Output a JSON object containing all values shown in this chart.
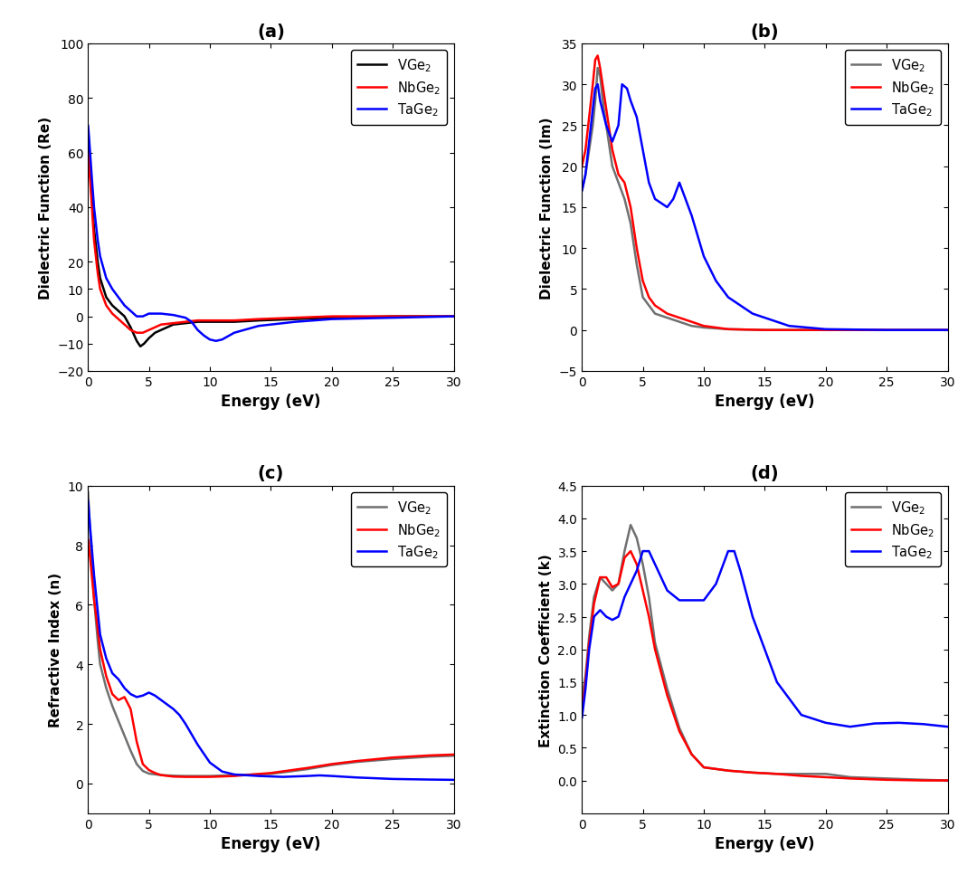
{
  "panel_labels": [
    "(a)",
    "(b)",
    "(c)",
    "(d)"
  ],
  "xlim": [
    0,
    30
  ],
  "xlabel": "Energy (eV)",
  "legend_labels": [
    "VGe$_2$",
    "NbGe$_2$",
    "TaGe$_2$"
  ],
  "line_colors_a": [
    "#000000",
    "#ff0000",
    "#0000ff"
  ],
  "line_colors_bcd": [
    "#707070",
    "#ff0000",
    "#0000ff"
  ],
  "panel_a": {
    "ylabel": "Dielectric Function (Re)",
    "ylim": [
      -20,
      100
    ],
    "yticks": [
      -20,
      -10,
      0,
      10,
      20,
      40,
      60,
      80,
      100
    ],
    "V_x": [
      0.01,
      0.1,
      0.3,
      0.5,
      0.8,
      1.0,
      1.5,
      2.0,
      2.5,
      3.0,
      3.5,
      4.0,
      4.3,
      4.6,
      5.0,
      5.5,
      6.0,
      7.0,
      8.0,
      9.0,
      10.0,
      11.0,
      12.0,
      14.0,
      17.0,
      20.0,
      25.0,
      30.0
    ],
    "V_y": [
      62,
      58,
      45,
      32,
      20,
      14,
      7,
      4,
      2,
      0,
      -4,
      -9,
      -11,
      -10,
      -8,
      -6,
      -5,
      -3,
      -2.5,
      -2,
      -2,
      -2,
      -2,
      -1.5,
      -1,
      -0.5,
      0,
      0
    ],
    "Nb_x": [
      0.01,
      0.1,
      0.3,
      0.5,
      0.8,
      1.0,
      1.5,
      2.0,
      2.5,
      3.0,
      3.5,
      4.0,
      4.5,
      5.0,
      5.5,
      6.0,
      7.0,
      8.0,
      9.0,
      10.0,
      11.0,
      12.0,
      14.0,
      17.0,
      20.0,
      25.0,
      30.0
    ],
    "Nb_y": [
      60,
      55,
      42,
      28,
      16,
      10,
      4,
      1,
      -1,
      -3,
      -5,
      -6,
      -6,
      -5,
      -4,
      -3,
      -2.5,
      -2,
      -1.5,
      -1.5,
      -1.5,
      -1.5,
      -1,
      -0.5,
      0,
      0,
      0
    ],
    "Ta_x": [
      0.01,
      0.1,
      0.3,
      0.5,
      0.8,
      1.0,
      1.5,
      2.0,
      2.5,
      3.0,
      3.5,
      4.0,
      4.5,
      5.0,
      6.0,
      7.0,
      7.5,
      8.0,
      8.5,
      9.0,
      9.5,
      10.0,
      10.5,
      11.0,
      12.0,
      14.0,
      17.0,
      20.0,
      25.0,
      30.0
    ],
    "Ta_y": [
      70,
      65,
      52,
      40,
      28,
      22,
      14,
      10,
      7,
      4,
      2,
      0,
      0,
      1,
      1,
      0.5,
      0,
      -0.5,
      -2,
      -5,
      -7,
      -8.5,
      -9,
      -8.5,
      -6,
      -3.5,
      -2,
      -1,
      -0.5,
      0
    ]
  },
  "panel_b": {
    "ylabel": "Dielectric Function (Im)",
    "ylim": [
      -5,
      35
    ],
    "yticks": [
      -5,
      0,
      5,
      10,
      15,
      20,
      25,
      30,
      35
    ],
    "V_x": [
      0.01,
      0.3,
      0.6,
      0.9,
      1.1,
      1.3,
      1.5,
      1.8,
      2.0,
      2.5,
      3.0,
      3.5,
      4.0,
      4.5,
      5.0,
      6.0,
      7.0,
      8.0,
      9.0,
      10.0,
      12.0,
      15.0,
      20.0,
      25.0,
      30.0
    ],
    "V_y": [
      17,
      19,
      22,
      25,
      28,
      32,
      31,
      27,
      25,
      20,
      18,
      16,
      13,
      8,
      4,
      2,
      1.5,
      1,
      0.5,
      0.3,
      0.1,
      0.0,
      0.0,
      0.0,
      0.0
    ],
    "Nb_x": [
      0.01,
      0.3,
      0.6,
      0.9,
      1.1,
      1.3,
      1.5,
      1.8,
      2.0,
      2.5,
      3.0,
      3.5,
      4.0,
      4.5,
      5.0,
      5.5,
      6.0,
      7.0,
      8.0,
      9.0,
      10.0,
      12.0,
      15.0,
      20.0,
      25.0,
      30.0
    ],
    "Nb_y": [
      20,
      22,
      26,
      30,
      33,
      33.5,
      32,
      29,
      27,
      22,
      19,
      18,
      15,
      10,
      6,
      4,
      3,
      2,
      1.5,
      1,
      0.5,
      0.1,
      0.0,
      0.0,
      0.0,
      0.0
    ],
    "Ta_x": [
      0.01,
      0.3,
      0.6,
      0.9,
      1.1,
      1.3,
      1.5,
      2.0,
      2.5,
      3.0,
      3.3,
      3.7,
      4.0,
      4.5,
      5.0,
      5.5,
      6.0,
      7.0,
      7.5,
      8.0,
      9.0,
      10.0,
      11.0,
      12.0,
      14.0,
      17.0,
      20.0,
      25.0,
      30.0
    ],
    "Ta_y": [
      17,
      19,
      23,
      27,
      29.5,
      30,
      28,
      25,
      23,
      25,
      30,
      29.5,
      28,
      26,
      22,
      18,
      16,
      15,
      16,
      18,
      14,
      9,
      6,
      4,
      2,
      0.5,
      0.1,
      0.0,
      0.0
    ]
  },
  "panel_c": {
    "ylabel": "Refractive Index (n)",
    "ylim": [
      -1,
      10
    ],
    "yticks": [
      0,
      2,
      4,
      6,
      8,
      10
    ],
    "V_x": [
      0.01,
      0.2,
      0.5,
      0.8,
      1.0,
      1.5,
      2.0,
      2.5,
      3.0,
      3.5,
      4.0,
      4.5,
      5.0,
      6.0,
      7.0,
      8.0,
      10.0,
      12.0,
      15.0,
      18.0,
      20.0,
      22.0,
      25.0,
      28.0,
      30.0
    ],
    "V_y": [
      9.8,
      8.3,
      6.2,
      4.8,
      4.0,
      3.2,
      2.6,
      2.1,
      1.6,
      1.1,
      0.65,
      0.42,
      0.33,
      0.28,
      0.26,
      0.25,
      0.25,
      0.28,
      0.32,
      0.48,
      0.62,
      0.72,
      0.82,
      0.9,
      0.93
    ],
    "Nb_x": [
      0.01,
      0.2,
      0.5,
      0.8,
      1.0,
      1.5,
      2.0,
      2.5,
      3.0,
      3.5,
      4.0,
      4.5,
      5.0,
      5.5,
      6.0,
      7.0,
      8.0,
      10.0,
      12.0,
      15.0,
      18.0,
      20.0,
      22.0,
      25.0,
      28.0,
      30.0
    ],
    "Nb_y": [
      8.2,
      7.5,
      6.2,
      5.2,
      4.5,
      3.6,
      3.0,
      2.8,
      2.9,
      2.5,
      1.4,
      0.65,
      0.45,
      0.35,
      0.28,
      0.23,
      0.22,
      0.22,
      0.25,
      0.35,
      0.52,
      0.65,
      0.75,
      0.87,
      0.94,
      0.97
    ],
    "Ta_x": [
      0.01,
      0.2,
      0.5,
      0.8,
      1.0,
      1.5,
      2.0,
      2.5,
      3.0,
      3.5,
      4.0,
      4.5,
      5.0,
      5.5,
      6.0,
      6.5,
      7.0,
      7.5,
      8.0,
      9.0,
      10.0,
      11.0,
      12.0,
      14.0,
      16.0,
      18.0,
      19.0,
      20.0,
      22.0,
      25.0,
      28.0,
      30.0
    ],
    "Ta_y": [
      9.5,
      8.5,
      7.0,
      5.8,
      5.0,
      4.2,
      3.7,
      3.5,
      3.2,
      3.0,
      2.9,
      2.95,
      3.05,
      2.95,
      2.8,
      2.65,
      2.5,
      2.3,
      2.0,
      1.3,
      0.7,
      0.4,
      0.3,
      0.25,
      0.22,
      0.25,
      0.27,
      0.25,
      0.2,
      0.15,
      0.13,
      0.12
    ]
  },
  "panel_d": {
    "ylabel": "Extinction Coefficient (k)",
    "ylim": [
      -0.5,
      4.5
    ],
    "yticks": [
      0.0,
      0.5,
      1.0,
      1.5,
      2.0,
      2.5,
      3.0,
      3.5,
      4.0,
      4.5
    ],
    "V_x": [
      0.01,
      0.3,
      0.6,
      1.0,
      1.5,
      2.0,
      2.5,
      3.0,
      3.5,
      4.0,
      4.5,
      5.0,
      5.5,
      6.0,
      7.0,
      8.0,
      9.0,
      10.0,
      12.0,
      14.0,
      16.0,
      18.0,
      19.0,
      20.0,
      22.0,
      25.0,
      28.0,
      30.0
    ],
    "V_y": [
      1.25,
      1.6,
      2.2,
      2.8,
      3.1,
      3.0,
      2.9,
      3.0,
      3.5,
      3.9,
      3.7,
      3.3,
      2.8,
      2.1,
      1.4,
      0.8,
      0.4,
      0.2,
      0.15,
      0.12,
      0.1,
      0.1,
      0.1,
      0.1,
      0.05,
      0.03,
      0.01,
      0.0
    ],
    "Nb_x": [
      0.01,
      0.3,
      0.6,
      1.0,
      1.5,
      2.0,
      2.5,
      3.0,
      3.5,
      4.0,
      4.5,
      5.0,
      5.5,
      6.0,
      7.0,
      8.0,
      9.0,
      10.0,
      12.0,
      14.0,
      16.0,
      18.0,
      20.0,
      22.0,
      25.0,
      28.0,
      30.0
    ],
    "Nb_y": [
      1.05,
      1.5,
      2.1,
      2.7,
      3.1,
      3.1,
      2.95,
      3.0,
      3.4,
      3.5,
      3.3,
      2.9,
      2.5,
      2.0,
      1.3,
      0.75,
      0.4,
      0.2,
      0.15,
      0.12,
      0.1,
      0.07,
      0.05,
      0.03,
      0.01,
      0.0,
      0.0
    ],
    "Ta_x": [
      0.01,
      0.3,
      0.6,
      1.0,
      1.5,
      2.0,
      2.5,
      3.0,
      3.5,
      4.0,
      4.5,
      5.0,
      5.5,
      6.0,
      7.0,
      8.0,
      9.0,
      10.0,
      11.0,
      12.0,
      12.5,
      13.0,
      14.0,
      16.0,
      18.0,
      20.0,
      22.0,
      24.0,
      26.0,
      28.0,
      30.0
    ],
    "Ta_y": [
      0.95,
      1.4,
      2.0,
      2.5,
      2.6,
      2.5,
      2.45,
      2.5,
      2.8,
      3.0,
      3.2,
      3.5,
      3.5,
      3.3,
      2.9,
      2.75,
      2.75,
      2.75,
      3.0,
      3.5,
      3.5,
      3.2,
      2.5,
      1.5,
      1.0,
      0.88,
      0.82,
      0.87,
      0.88,
      0.86,
      0.82
    ]
  }
}
